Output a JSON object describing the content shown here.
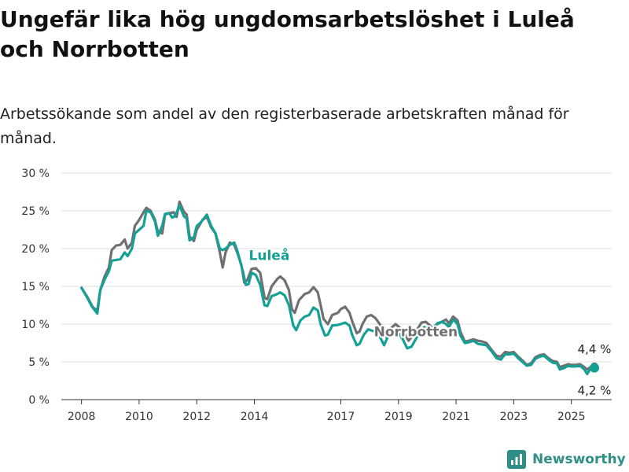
{
  "chart_data": {
    "type": "line",
    "title": "Ungefär lika hög ungdomsarbetslöshet i Luleå och Norrbotten",
    "subtitle": "Arbetssökande som andel av den registerbaserade arbetskraften månad för månad.",
    "y_ticks": [
      "0 %",
      "5 %",
      "10 %",
      "15 %",
      "20 %",
      "25 %",
      "30 %"
    ],
    "x_ticks": [
      "2008",
      "2010",
      "2012",
      "2014",
      "2017",
      "2019",
      "2021",
      "2023",
      "2025"
    ],
    "ylim": [
      0,
      30
    ],
    "grid": true,
    "series": [
      {
        "name": "Norrbotten",
        "color": "#707070",
        "end_label": "4,4 %",
        "points": [
          [
            2008.0,
            14.8
          ],
          [
            2008.2,
            13.6
          ],
          [
            2008.4,
            12.2
          ],
          [
            2008.55,
            11.8
          ],
          [
            2008.65,
            14.5
          ],
          [
            2008.8,
            16.3
          ],
          [
            2008.95,
            17.5
          ],
          [
            2009.05,
            19.8
          ],
          [
            2009.2,
            20.4
          ],
          [
            2009.35,
            20.5
          ],
          [
            2009.5,
            21.2
          ],
          [
            2009.6,
            20.0
          ],
          [
            2009.75,
            20.8
          ],
          [
            2009.85,
            23.0
          ],
          [
            2010.0,
            23.8
          ],
          [
            2010.15,
            24.8
          ],
          [
            2010.25,
            25.4
          ],
          [
            2010.4,
            25.0
          ],
          [
            2010.55,
            23.8
          ],
          [
            2010.65,
            22.2
          ],
          [
            2010.8,
            22.0
          ],
          [
            2010.9,
            24.5
          ],
          [
            2011.05,
            24.7
          ],
          [
            2011.2,
            24.8
          ],
          [
            2011.3,
            24.2
          ],
          [
            2011.4,
            26.2
          ],
          [
            2011.55,
            24.9
          ],
          [
            2011.65,
            24.5
          ],
          [
            2011.75,
            21.6
          ],
          [
            2011.9,
            21.0
          ],
          [
            2012.0,
            22.5
          ],
          [
            2012.2,
            23.8
          ],
          [
            2012.35,
            24.2
          ],
          [
            2012.5,
            22.8
          ],
          [
            2012.65,
            22.0
          ],
          [
            2012.8,
            19.5
          ],
          [
            2012.9,
            17.5
          ],
          [
            2013.0,
            19.5
          ],
          [
            2013.15,
            20.8
          ],
          [
            2013.3,
            20.5
          ],
          [
            2013.4,
            19.5
          ],
          [
            2013.55,
            17.8
          ],
          [
            2013.65,
            15.5
          ],
          [
            2013.75,
            15.8
          ],
          [
            2013.9,
            17.3
          ],
          [
            2014.05,
            17.4
          ],
          [
            2014.2,
            16.8
          ],
          [
            2014.35,
            13.5
          ],
          [
            2014.45,
            13.3
          ],
          [
            2014.6,
            15.0
          ],
          [
            2014.8,
            16.0
          ],
          [
            2014.9,
            16.3
          ],
          [
            2015.05,
            15.8
          ],
          [
            2015.2,
            14.5
          ],
          [
            2015.3,
            12.0
          ],
          [
            2015.4,
            11.5
          ],
          [
            2015.55,
            13.2
          ],
          [
            2015.75,
            14.0
          ],
          [
            2015.9,
            14.2
          ],
          [
            2016.05,
            14.9
          ],
          [
            2016.2,
            14.2
          ],
          [
            2016.3,
            12.5
          ],
          [
            2016.4,
            10.7
          ],
          [
            2016.55,
            10.0
          ],
          [
            2016.7,
            11.2
          ],
          [
            2016.9,
            11.5
          ],
          [
            2017.0,
            12.0
          ],
          [
            2017.15,
            12.3
          ],
          [
            2017.3,
            11.5
          ],
          [
            2017.4,
            10.3
          ],
          [
            2017.55,
            8.8
          ],
          [
            2017.65,
            9.0
          ],
          [
            2017.75,
            10.0
          ],
          [
            2017.9,
            11.0
          ],
          [
            2018.05,
            11.2
          ],
          [
            2018.2,
            10.8
          ],
          [
            2018.35,
            10.0
          ],
          [
            2018.5,
            9.0
          ],
          [
            2018.6,
            8.2
          ],
          [
            2018.75,
            9.5
          ],
          [
            2018.9,
            10.0
          ],
          [
            2019.05,
            9.5
          ],
          [
            2019.2,
            8.8
          ],
          [
            2019.35,
            7.8
          ],
          [
            2019.5,
            8.5
          ],
          [
            2019.65,
            9.3
          ],
          [
            2019.8,
            10.2
          ],
          [
            2019.95,
            10.3
          ],
          [
            2020.1,
            9.8
          ],
          [
            2020.2,
            9.3
          ],
          [
            2020.35,
            10.0
          ],
          [
            2020.5,
            10.3
          ],
          [
            2020.65,
            10.6
          ],
          [
            2020.75,
            10.1
          ],
          [
            2020.9,
            11.0
          ],
          [
            2021.05,
            10.5
          ],
          [
            2021.15,
            9.0
          ],
          [
            2021.3,
            7.7
          ],
          [
            2021.45,
            7.8
          ],
          [
            2021.6,
            8.0
          ],
          [
            2021.75,
            7.8
          ],
          [
            2021.9,
            7.7
          ],
          [
            2022.05,
            7.5
          ],
          [
            2022.25,
            6.5
          ],
          [
            2022.4,
            5.8
          ],
          [
            2022.55,
            5.7
          ],
          [
            2022.7,
            6.3
          ],
          [
            2022.85,
            6.2
          ],
          [
            2023.0,
            6.3
          ],
          [
            2023.15,
            5.7
          ],
          [
            2023.3,
            5.2
          ],
          [
            2023.45,
            4.6
          ],
          [
            2023.6,
            4.8
          ],
          [
            2023.75,
            5.6
          ],
          [
            2023.9,
            5.9
          ],
          [
            2024.05,
            6.0
          ],
          [
            2024.2,
            5.5
          ],
          [
            2024.35,
            5.1
          ],
          [
            2024.5,
            5.0
          ],
          [
            2024.6,
            4.3
          ],
          [
            2024.75,
            4.5
          ],
          [
            2024.9,
            4.7
          ],
          [
            2025.0,
            4.6
          ],
          [
            2025.15,
            4.6
          ],
          [
            2025.3,
            4.7
          ],
          [
            2025.45,
            4.3
          ],
          [
            2025.55,
            4.0
          ],
          [
            2025.7,
            4.4
          ],
          [
            2025.8,
            4.4
          ]
        ]
      },
      {
        "name": "Luleå",
        "color": "#15a096",
        "end_label": "4,2 %",
        "points": [
          [
            2008.0,
            14.8
          ],
          [
            2008.2,
            13.5
          ],
          [
            2008.35,
            12.4
          ],
          [
            2008.55,
            11.4
          ],
          [
            2008.65,
            14.5
          ],
          [
            2008.8,
            15.9
          ],
          [
            2008.95,
            17.0
          ],
          [
            2009.05,
            18.4
          ],
          [
            2009.2,
            18.5
          ],
          [
            2009.35,
            18.6
          ],
          [
            2009.5,
            19.5
          ],
          [
            2009.6,
            19.0
          ],
          [
            2009.75,
            20.0
          ],
          [
            2009.85,
            22.0
          ],
          [
            2010.0,
            22.5
          ],
          [
            2010.15,
            23.0
          ],
          [
            2010.25,
            25.0
          ],
          [
            2010.4,
            24.8
          ],
          [
            2010.55,
            23.6
          ],
          [
            2010.65,
            21.7
          ],
          [
            2010.8,
            23.0
          ],
          [
            2010.9,
            24.6
          ],
          [
            2011.05,
            24.7
          ],
          [
            2011.15,
            24.1
          ],
          [
            2011.25,
            24.3
          ],
          [
            2011.4,
            25.7
          ],
          [
            2011.55,
            24.3
          ],
          [
            2011.65,
            24.0
          ],
          [
            2011.75,
            21.1
          ],
          [
            2011.9,
            21.5
          ],
          [
            2012.0,
            23.0
          ],
          [
            2012.15,
            23.5
          ],
          [
            2012.35,
            24.5
          ],
          [
            2012.5,
            23.0
          ],
          [
            2012.65,
            22.0
          ],
          [
            2012.8,
            20.0
          ],
          [
            2012.9,
            19.8
          ],
          [
            2013.0,
            20.0
          ],
          [
            2013.15,
            20.5
          ],
          [
            2013.3,
            20.8
          ],
          [
            2013.4,
            19.8
          ],
          [
            2013.6,
            17.0
          ],
          [
            2013.7,
            15.2
          ],
          [
            2013.8,
            15.3
          ],
          [
            2013.9,
            16.8
          ],
          [
            2014.05,
            16.5
          ],
          [
            2014.2,
            15.2
          ],
          [
            2014.35,
            12.5
          ],
          [
            2014.45,
            12.4
          ],
          [
            2014.6,
            13.7
          ],
          [
            2014.8,
            14.0
          ],
          [
            2014.9,
            14.2
          ],
          [
            2015.05,
            13.8
          ],
          [
            2015.2,
            12.5
          ],
          [
            2015.35,
            9.8
          ],
          [
            2015.45,
            9.2
          ],
          [
            2015.6,
            10.5
          ],
          [
            2015.75,
            11.0
          ],
          [
            2015.9,
            11.2
          ],
          [
            2016.05,
            12.2
          ],
          [
            2016.2,
            11.8
          ],
          [
            2016.3,
            10.0
          ],
          [
            2016.45,
            8.5
          ],
          [
            2016.55,
            8.6
          ],
          [
            2016.7,
            9.8
          ],
          [
            2016.9,
            9.9
          ],
          [
            2017.0,
            10.0
          ],
          [
            2017.15,
            10.2
          ],
          [
            2017.3,
            9.8
          ],
          [
            2017.4,
            8.5
          ],
          [
            2017.55,
            7.2
          ],
          [
            2017.65,
            7.4
          ],
          [
            2017.8,
            8.6
          ],
          [
            2017.95,
            9.3
          ],
          [
            2018.1,
            9.1
          ],
          [
            2018.25,
            9.0
          ],
          [
            2018.4,
            8.0
          ],
          [
            2018.5,
            7.2
          ],
          [
            2018.65,
            8.5
          ],
          [
            2018.85,
            9.2
          ],
          [
            2019.0,
            8.8
          ],
          [
            2019.15,
            8.0
          ],
          [
            2019.3,
            6.8
          ],
          [
            2019.45,
            7.0
          ],
          [
            2019.6,
            8.0
          ],
          [
            2019.75,
            9.2
          ],
          [
            2019.9,
            9.6
          ],
          [
            2020.05,
            9.3
          ],
          [
            2020.2,
            9.5
          ],
          [
            2020.35,
            10.1
          ],
          [
            2020.5,
            10.3
          ],
          [
            2020.65,
            10.0
          ],
          [
            2020.75,
            9.6
          ],
          [
            2020.9,
            10.6
          ],
          [
            2021.05,
            10.0
          ],
          [
            2021.15,
            8.5
          ],
          [
            2021.3,
            7.5
          ],
          [
            2021.45,
            7.6
          ],
          [
            2021.6,
            7.8
          ],
          [
            2021.75,
            7.4
          ],
          [
            2021.9,
            7.3
          ],
          [
            2022.05,
            7.2
          ],
          [
            2022.25,
            6.3
          ],
          [
            2022.4,
            5.5
          ],
          [
            2022.55,
            5.3
          ],
          [
            2022.7,
            6.0
          ],
          [
            2022.85,
            6.0
          ],
          [
            2023.0,
            6.1
          ],
          [
            2023.15,
            5.5
          ],
          [
            2023.3,
            5.0
          ],
          [
            2023.45,
            4.5
          ],
          [
            2023.6,
            4.6
          ],
          [
            2023.75,
            5.4
          ],
          [
            2023.9,
            5.7
          ],
          [
            2024.05,
            5.8
          ],
          [
            2024.2,
            5.3
          ],
          [
            2024.35,
            4.9
          ],
          [
            2024.5,
            4.8
          ],
          [
            2024.6,
            4.0
          ],
          [
            2024.75,
            4.2
          ],
          [
            2024.9,
            4.5
          ],
          [
            2025.0,
            4.4
          ],
          [
            2025.15,
            4.4
          ],
          [
            2025.3,
            4.5
          ],
          [
            2025.45,
            4.0
          ],
          [
            2025.55,
            3.4
          ],
          [
            2025.65,
            4.0
          ],
          [
            2025.8,
            4.2
          ]
        ]
      }
    ]
  },
  "branding": {
    "name": "Newsworthy",
    "icon": "newsworthy-logo-icon",
    "color": "#2f8f86"
  }
}
